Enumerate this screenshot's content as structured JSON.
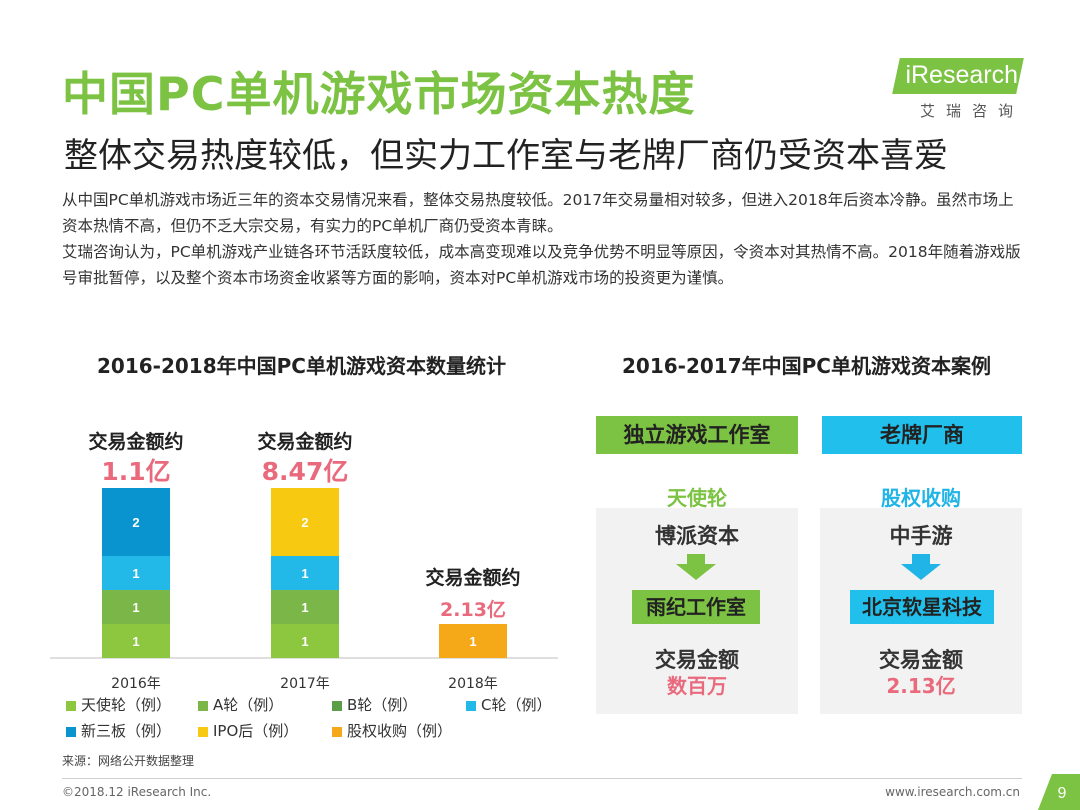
{
  "title": "中国PC单机游戏市场资本热度",
  "subtitle": "整体交易热度较低，但实力工作室与老牌厂商仍受资本喜爱",
  "logo": {
    "brand": "iResearch",
    "cn": "艾瑞咨询"
  },
  "intro": [
    "从中国PC单机游戏市场近三年的资本交易情况来看，整体交易热度较低。2017年交易量相对较多，但进入2018年后资本冷静。虽然市场上资本热情不高，但仍不乏大宗交易，有实力的PC单机厂商仍受资本青睐。",
    "艾瑞咨询认为，PC单机游戏产业链各环节活跃度较低，成本高变现难以及竞争优势不明显等原因，令资本对其热情不高。2018年随着游戏版号审批暂停，以及整个资本市场资金收紧等方面的影响，资本对PC单机游戏市场的投资更为谨慎。"
  ],
  "chart_title": "2016-2018年中国PC单机游戏资本数量统计",
  "cases_title": "2016-2017年中国PC单机游戏资本案例",
  "chart_data": {
    "type": "bar",
    "stacked": true,
    "categories": [
      "2016年",
      "2017年",
      "2018年"
    ],
    "series": [
      {
        "name": "天使轮（例）",
        "color": "#8dc63f",
        "values": [
          1,
          1,
          0
        ]
      },
      {
        "name": "A轮（例）",
        "color": "#7ab648",
        "values": [
          1,
          1,
          0
        ]
      },
      {
        "name": "B轮（例）",
        "color": "#5a9e48",
        "values": [
          0,
          0,
          0
        ]
      },
      {
        "name": "C轮（例）",
        "color": "#22b8e8",
        "values": [
          1,
          1,
          0
        ]
      },
      {
        "name": "新三板（例）",
        "color": "#0a94cf",
        "values": [
          2,
          0,
          0
        ]
      },
      {
        "name": "IPO后（例）",
        "color": "#f7c910",
        "values": [
          0,
          2,
          0
        ]
      },
      {
        "name": "股权收购（例）",
        "color": "#f5a818",
        "values": [
          0,
          0,
          1
        ]
      }
    ],
    "annotations": [
      {
        "label": "交易金额约",
        "amount": "1.1亿"
      },
      {
        "label": "交易金额约",
        "amount": "8.47亿"
      },
      {
        "label": "交易金额约",
        "amount": "2.13亿"
      }
    ],
    "ylim": [
      0,
      5
    ]
  },
  "cases": [
    {
      "header": "独立游戏工作室",
      "header_color": "#7cc243",
      "type": "天使轮",
      "type_color": "#7cc243",
      "investor": "博派资本",
      "target": "雨纪工作室",
      "amount_label": "交易金额",
      "amount": "数百万"
    },
    {
      "header": "老牌厂商",
      "header_color": "#21c0ec",
      "type": "股权收购",
      "type_color": "#21b4e6",
      "investor": "中手游",
      "target": "北京软星科技",
      "amount_label": "交易金额",
      "amount": "2.13亿"
    }
  ],
  "source": "来源：网络公开数据整理",
  "copyright": "©2018.12 iResearch Inc.",
  "website": "www.iresearch.com.cn",
  "page_number": "9"
}
